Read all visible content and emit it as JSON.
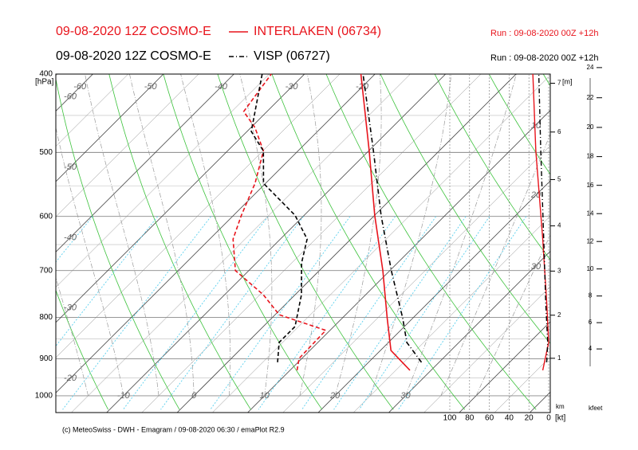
{
  "chart_data": {
    "type": "emagram",
    "stations": [
      {
        "name": "INTERLAKEN (06734)",
        "color": "#e8141c",
        "temp_dash": "solid",
        "model": "09-08-2020 12Z COSMO-E",
        "run": "Run : 09-08-2020 00Z +12h",
        "temperature": {
          "x": [
            27.0,
            21.5,
            16.4,
            9.0,
            0.0,
            -9.9,
            -22.0
          ],
          "y": [
            930,
            879,
            802,
            700,
            598,
            498,
            400
          ]
        },
        "dewpoint": {
          "x": [
            11.0,
            9.6,
            9.4,
            0.6,
            -4.5,
            -11.9,
            -16.7,
            -18.9,
            -21.5,
            -24.9,
            -29.4,
            -33.3,
            -34.7
          ],
          "y": [
            930,
            899,
            830,
            794,
            750,
            700,
            640,
            598,
            546,
            498,
            466,
            445,
            400
          ]
        },
        "wind_speed": {
          "x": [
            6,
            0,
            2,
            6,
            13,
            16
          ],
          "y": [
            930,
            859,
            767,
            640,
            498,
            400
          ]
        }
      },
      {
        "name": "VISP (06727)",
        "color": "#000000",
        "temp_dash": "dashdot",
        "model": "09-08-2020 12Z COSMO-E",
        "run": "Run : 09-08-2020 00Z +12h",
        "temperature": {
          "x": [
            27.5,
            22.6,
            18.6,
            10.2,
            0.9,
            -9.3,
            -21.7
          ],
          "y": [
            909,
            859,
            802,
            700,
            598,
            498,
            400
          ]
        },
        "dewpoint": {
          "x": [
            7.1,
            4.5,
            4.5,
            0.9,
            -3.6,
            -6.2,
            -11.3,
            -20.3,
            -24.9,
            -29.4,
            -36.0
          ],
          "y": [
            909,
            859,
            821,
            750,
            685,
            640,
            598,
            546,
            498,
            471,
            400
          ]
        },
        "wind_speed": {
          "x": [
            2,
            1,
            3,
            5,
            8,
            10
          ],
          "y": [
            909,
            859,
            767,
            640,
            498,
            400
          ]
        }
      }
    ],
    "ylabel": "[hPa]",
    "ylim": [
      1049,
      400
    ],
    "yticks": [
      400,
      500,
      600,
      700,
      800,
      900,
      1000
    ],
    "xlim": [
      -17.2,
      52.9
    ],
    "xticks": [
      -10,
      0,
      10,
      20,
      30
    ],
    "top_isotherm_labels": [
      -60,
      -50,
      -40,
      -30,
      -20
    ],
    "left_isotherm_labels": [
      -60,
      -50,
      -40,
      -30,
      -20
    ],
    "right_labels": [
      10,
      20,
      30
    ],
    "wind_lim": [
      0,
      100
    ],
    "wind_ticks": [
      100,
      80,
      60,
      40,
      20,
      0
    ],
    "wind_unit": "[kt]",
    "km_label": "km",
    "m_label": "[m]",
    "km_ticks": [
      1,
      2,
      3,
      4,
      5,
      6,
      7
    ],
    "kfeet_label": "kfeet",
    "kfeet_ticks": [
      4,
      6,
      8,
      10,
      12,
      14,
      16,
      18,
      20,
      22,
      24
    ],
    "footer": "(c) MeteoSwiss - DWH - Emagram / 09-08-2020 06:30 / emaPlot R2.9"
  }
}
